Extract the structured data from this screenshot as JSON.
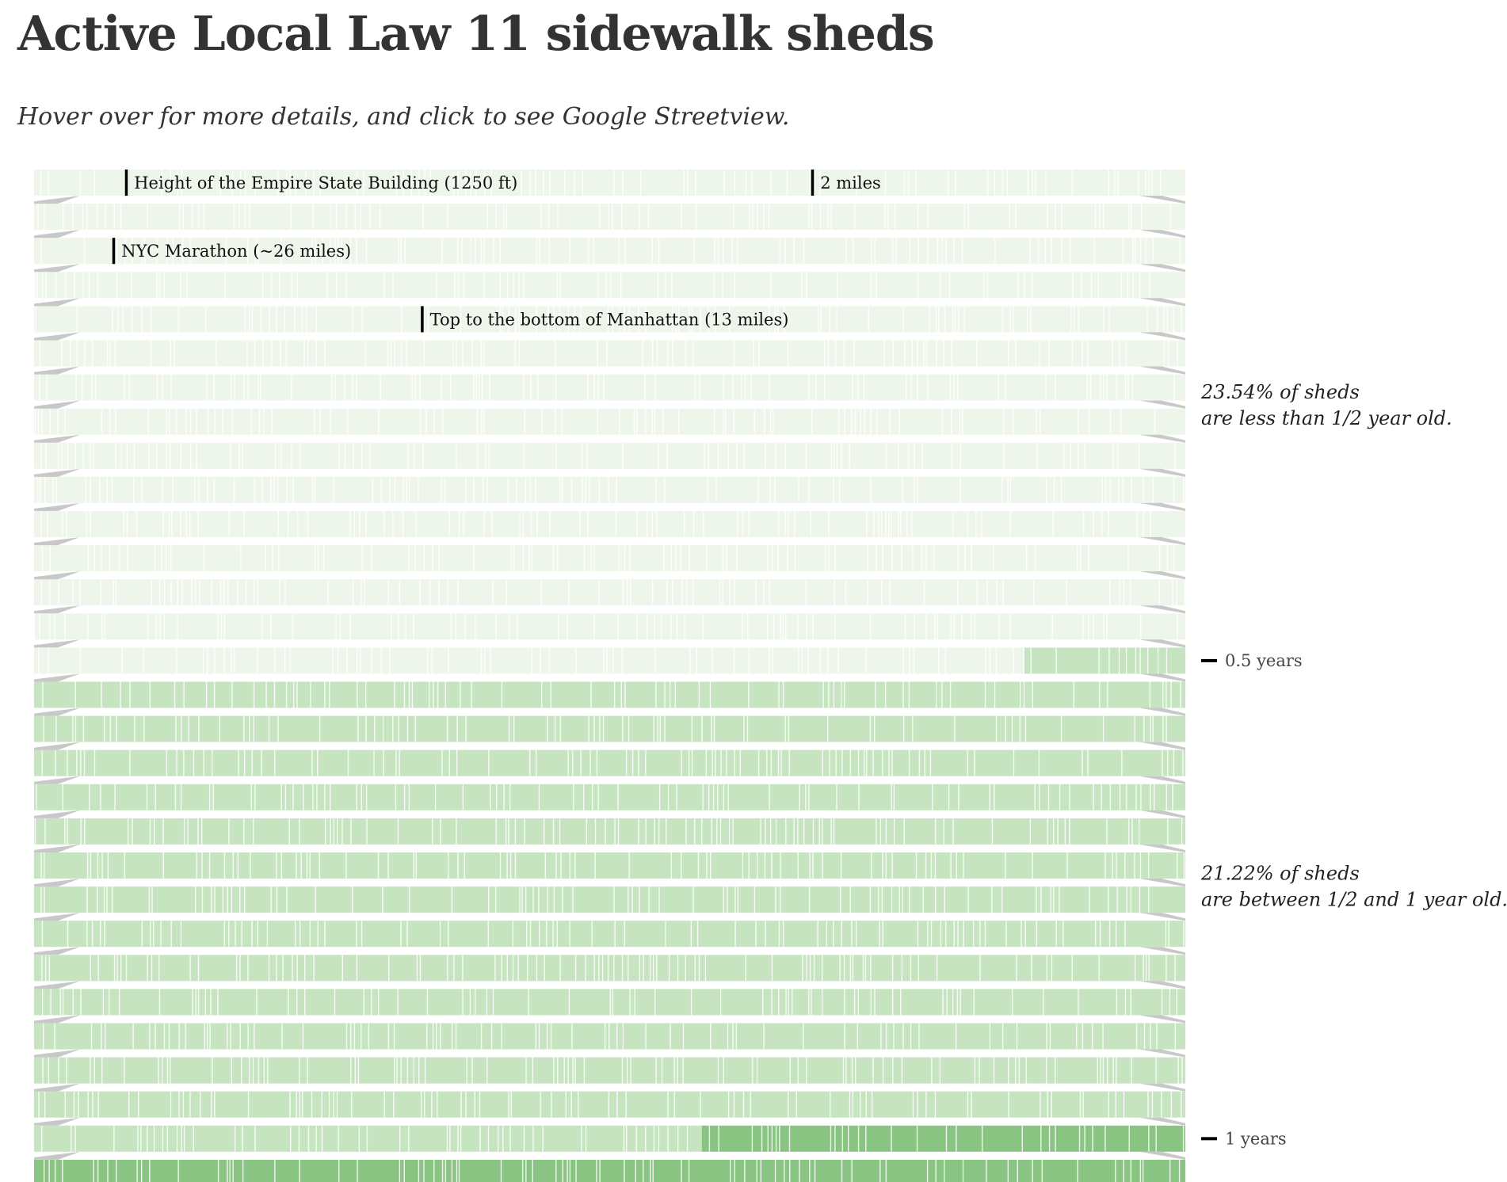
{
  "title": "Active Local Law 11 sidewalk sheds",
  "subtitle": "Hover over for more details, and click to see Google Streetview.",
  "colors": {
    "under_half_year": "#eef6ec",
    "half_to_one_year": "#c6e4bf",
    "over_one_year": "#8ac482",
    "divider": "#ffffff",
    "fold": "#c8c8c8",
    "marker": "#000000"
  },
  "chart_data": {
    "type": "bar",
    "description_note": "",
    "rows_visible": 30,
    "segments": [
      {
        "category": "under_half_year",
        "start_row": 0,
        "end_row": 14,
        "end_fraction": 0.86
      },
      {
        "category": "half_to_one_year",
        "start_row": 14,
        "start_fraction": 0.86,
        "end_row": 28,
        "end_fraction": 0.58
      },
      {
        "category": "over_one_year",
        "start_row": 28,
        "start_fraction": 0.58,
        "end_row": 30,
        "end_fraction": 1.0
      }
    ],
    "annotations": [
      {
        "label": "Height of the Empire State Building (1250 ft)",
        "row": 0,
        "fraction": 0.08
      },
      {
        "label": "2 miles",
        "row": 0,
        "fraction": 0.676
      },
      {
        "label": "NYC Marathon (~26 miles)",
        "row": 2,
        "fraction": 0.069
      },
      {
        "label": "Top to the bottom of Manhattan (13 miles)",
        "row": 4,
        "fraction": 0.337
      }
    ],
    "group_labels": [
      {
        "lines": [
          "23.54% of sheds",
          "are less than 1/2 year old."
        ],
        "row": 6.7
      },
      {
        "lines": [
          "21.22% of sheds",
          "are between 1/2 and 1 year old."
        ],
        "row": 20.8
      }
    ],
    "ticks": [
      {
        "label": "0.5 years",
        "row": 14
      },
      {
        "label": "1 years",
        "row": 28
      }
    ]
  }
}
